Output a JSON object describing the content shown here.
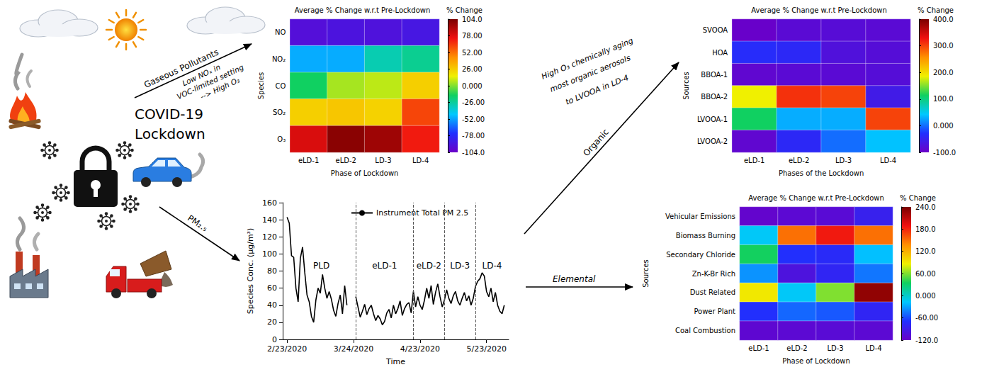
{
  "chart_data": [
    {
      "type": "heatmap",
      "title": "Average % Change w.r.t Pre-Lockdown",
      "x_label": "Phase of Lockdown",
      "y_label": "Species",
      "x": [
        "eLD-1",
        "eLD-2",
        "LD-3",
        "LD-4"
      ],
      "y": [
        "NO",
        "NO₂",
        "CO",
        "SO₂",
        "O₃"
      ],
      "values": [
        [
          -95,
          -92,
          -93,
          -90
        ],
        [
          -50,
          -50,
          -30,
          -24
        ],
        [
          -15,
          5,
          8,
          25
        ],
        [
          25,
          28,
          24,
          62
        ],
        [
          80,
          100,
          95,
          72
        ]
      ],
      "colorbar": {
        "label": "% Change",
        "range": [
          -104,
          104
        ],
        "ticks": [
          {
            "value": 104,
            "label": "104.0"
          },
          {
            "value": 78,
            "label": "78.00"
          },
          {
            "value": 52,
            "label": "52.00"
          },
          {
            "value": 26,
            "label": "26.00"
          },
          {
            "value": 0,
            "label": "0.000"
          },
          {
            "value": -26,
            "label": "-26.00"
          },
          {
            "value": -52,
            "label": "-52.00"
          },
          {
            "value": -78,
            "label": "-78.00"
          },
          {
            "value": -104,
            "label": "-104.0"
          }
        ],
        "colors": [
          "#6a00c8",
          "#2030ff",
          "#00c8ff",
          "#10d060",
          "#f0f000",
          "#ff9000",
          "#f01010",
          "#7a0000"
        ]
      }
    },
    {
      "type": "line",
      "x_label": "Time",
      "y_label": "Species Conc. (μg/m³)",
      "x": [
        "2020-02-23",
        "2020-02-24",
        "2020-02-25",
        "2020-02-26",
        "2020-02-27",
        "2020-02-28",
        "2020-02-29",
        "2020-03-01",
        "2020-03-02",
        "2020-03-03",
        "2020-03-04",
        "2020-03-05",
        "2020-03-06",
        "2020-03-07",
        "2020-03-08",
        "2020-03-09",
        "2020-03-10",
        "2020-03-11",
        "2020-03-12",
        "2020-03-13",
        "2020-03-14",
        "2020-03-15",
        "2020-03-16",
        "2020-03-17",
        "2020-03-18",
        "2020-03-19",
        "2020-03-20",
        "2020-03-21",
        "2020-03-22",
        "2020-03-23",
        "2020-03-24",
        "2020-03-25",
        "2020-03-26",
        "2020-03-27",
        "2020-03-28",
        "2020-03-29",
        "2020-03-30",
        "2020-03-31",
        "2020-04-01",
        "2020-04-02",
        "2020-04-03",
        "2020-04-04",
        "2020-04-05",
        "2020-04-06",
        "2020-04-07",
        "2020-04-08",
        "2020-04-09",
        "2020-04-10",
        "2020-04-11",
        "2020-04-12",
        "2020-04-13",
        "2020-04-14",
        "2020-04-15",
        "2020-04-16",
        "2020-04-17",
        "2020-04-18",
        "2020-04-19",
        "2020-04-20",
        "2020-04-21",
        "2020-04-22",
        "2020-04-23",
        "2020-04-24",
        "2020-04-25",
        "2020-04-26",
        "2020-04-27",
        "2020-04-28",
        "2020-04-29",
        "2020-04-30",
        "2020-05-01",
        "2020-05-02",
        "2020-05-03",
        "2020-05-04",
        "2020-05-05",
        "2020-05-06",
        "2020-05-07",
        "2020-05-08",
        "2020-05-09",
        "2020-05-10",
        "2020-05-11",
        "2020-05-12",
        "2020-05-13",
        "2020-05-14",
        "2020-05-15",
        "2020-05-16",
        "2020-05-17",
        "2020-05-18",
        "2020-05-19",
        "2020-05-20",
        "2020-05-21",
        "2020-05-22",
        "2020-05-23",
        "2020-05-24",
        "2020-05-25",
        "2020-05-26",
        "2020-05-27",
        "2020-05-28",
        "2020-05-29",
        "2020-05-30",
        "2020-05-31"
      ],
      "series": [
        {
          "name": "Instrument Total PM 2.5",
          "color": "#000000",
          "values": [
            143,
            136,
            98,
            96,
            60,
            44,
            95,
            108,
            78,
            52,
            44,
            27,
            20,
            46,
            60,
            54,
            76,
            60,
            48,
            56,
            47,
            34,
            27,
            42,
            52,
            30,
            63,
            40,
            null,
            null,
            null,
            50,
            38,
            26,
            33,
            41,
            29,
            36,
            40,
            30,
            22,
            28,
            24,
            17,
            21,
            31,
            35,
            25,
            40,
            30,
            36,
            45,
            28,
            36,
            41,
            43,
            31,
            56,
            38,
            50,
            40,
            35,
            46,
            60,
            48,
            63,
            41,
            55,
            65,
            50,
            38,
            46,
            58,
            48,
            42,
            51,
            56,
            45,
            40,
            48,
            55,
            45,
            51,
            40,
            48,
            62,
            68,
            71,
            78,
            74,
            56,
            50,
            60,
            44,
            55,
            40,
            33,
            30,
            40
          ]
        }
      ],
      "xlim": [
        "2020-02-21",
        "2020-06-02"
      ],
      "xticks": [
        {
          "value": "2020-02-23",
          "label": "2/23/2020"
        },
        {
          "value": "2020-03-24",
          "label": "3/24/2020"
        },
        {
          "value": "2020-04-23",
          "label": "4/23/2020"
        },
        {
          "value": "2020-05-23",
          "label": "5/23/2020"
        }
      ],
      "ylim": [
        0,
        160
      ],
      "yticks": [
        0,
        20,
        40,
        60,
        80,
        100,
        120,
        140,
        160
      ],
      "grid": false,
      "legend": "top",
      "phases": [
        {
          "label": "PLD",
          "start": "2020-02-23"
        },
        {
          "label": "eLD-1",
          "start": "2020-03-25"
        },
        {
          "label": "eLD-2",
          "start": "2020-04-20"
        },
        {
          "label": "LD-3",
          "start": "2020-05-04"
        },
        {
          "label": "LD-4",
          "start": "2020-05-18"
        }
      ]
    },
    {
      "type": "heatmap",
      "title": "Average % Change w.r.t Pre-Lockdown",
      "x_label": "Phases of the Lockdown",
      "y_label": "Sources",
      "x": [
        "eLD-1",
        "eLD-2",
        "LD-3",
        "LD-4"
      ],
      "y": [
        "SVOOA",
        "HOA",
        "BBOA-1",
        "BBOA-2",
        "LVOOA-1",
        "LVOOA-2"
      ],
      "values": [
        [
          -98,
          -85,
          -82,
          -85
        ],
        [
          -35,
          -40,
          -75,
          -80
        ],
        [
          -90,
          -85,
          -85,
          -80
        ],
        [
          186,
          310,
          300,
          -60
        ],
        [
          114,
          30,
          30,
          300
        ],
        [
          -90,
          -40,
          0,
          40
        ]
      ],
      "colorbar": {
        "label": "% Change",
        "range": [
          -100,
          400
        ],
        "ticks": [
          {
            "value": 400,
            "label": "400.0"
          },
          {
            "value": 300,
            "label": "300.0"
          },
          {
            "value": 200,
            "label": "200.0"
          },
          {
            "value": 100,
            "label": "100.0"
          },
          {
            "value": 0,
            "label": "0.000"
          },
          {
            "value": -100,
            "label": "-100.0"
          }
        ],
        "colors": [
          "#6a00c8",
          "#2030ff",
          "#00c8ff",
          "#10d060",
          "#f0f000",
          "#ff9000",
          "#f01010",
          "#7a0000"
        ]
      }
    },
    {
      "type": "heatmap",
      "title": "Average % Change w.r.t Pre-Lockdown",
      "x_label": "Phase of Lockdown",
      "y_label": "Sources",
      "x": [
        "eLD-1",
        "eLD-2",
        "LD-3",
        "LD-4"
      ],
      "y": [
        "Vehicular Emissions",
        "Biomass Burning",
        "Secondary Chloride",
        "Zn-K-Br Rich",
        "Dust Related",
        "Power Plant",
        "Coal Combustion"
      ],
      "values": [
        [
          -115,
          -110,
          -108,
          -85
        ],
        [
          -15,
          150,
          185,
          150
        ],
        [
          35,
          -70,
          -75,
          -20
        ],
        [
          -35,
          -100,
          -80,
          -45
        ],
        [
          90,
          -15,
          60,
          230
        ],
        [
          -70,
          -50,
          -55,
          -80
        ],
        [
          -112,
          -110,
          -108,
          -110
        ]
      ],
      "colorbar": {
        "label": "% Change",
        "range": [
          -120,
          240
        ],
        "ticks": [
          {
            "value": 240,
            "label": "240.0"
          },
          {
            "value": 180,
            "label": "180.0"
          },
          {
            "value": 120,
            "label": "120.0"
          },
          {
            "value": 60,
            "label": "60.00"
          },
          {
            "value": 0,
            "label": "0.000"
          },
          {
            "value": -60,
            "label": "-60.00"
          },
          {
            "value": -120,
            "label": "-120.0"
          }
        ],
        "colors": [
          "#6a00c8",
          "#2030ff",
          "#00c8ff",
          "#10d060",
          "#f0f000",
          "#ff9000",
          "#f01010",
          "#7a0000"
        ]
      }
    }
  ],
  "diagram": {
    "center_label": [
      "COVID-19",
      "Lockdown"
    ],
    "arrows": [
      {
        "label": "Gaseous Pollutants",
        "caption": [
          "Low NOₓ in",
          "VOC-limited setting",
          "--> High O₃"
        ]
      },
      {
        "label": "PM₂.₅"
      },
      {
        "label": "Organic",
        "caption": [
          "High O₃ chemically aging",
          "most organic aerosols",
          "to LVOOA in LD-4"
        ]
      },
      {
        "label": "Elemental"
      }
    ]
  }
}
